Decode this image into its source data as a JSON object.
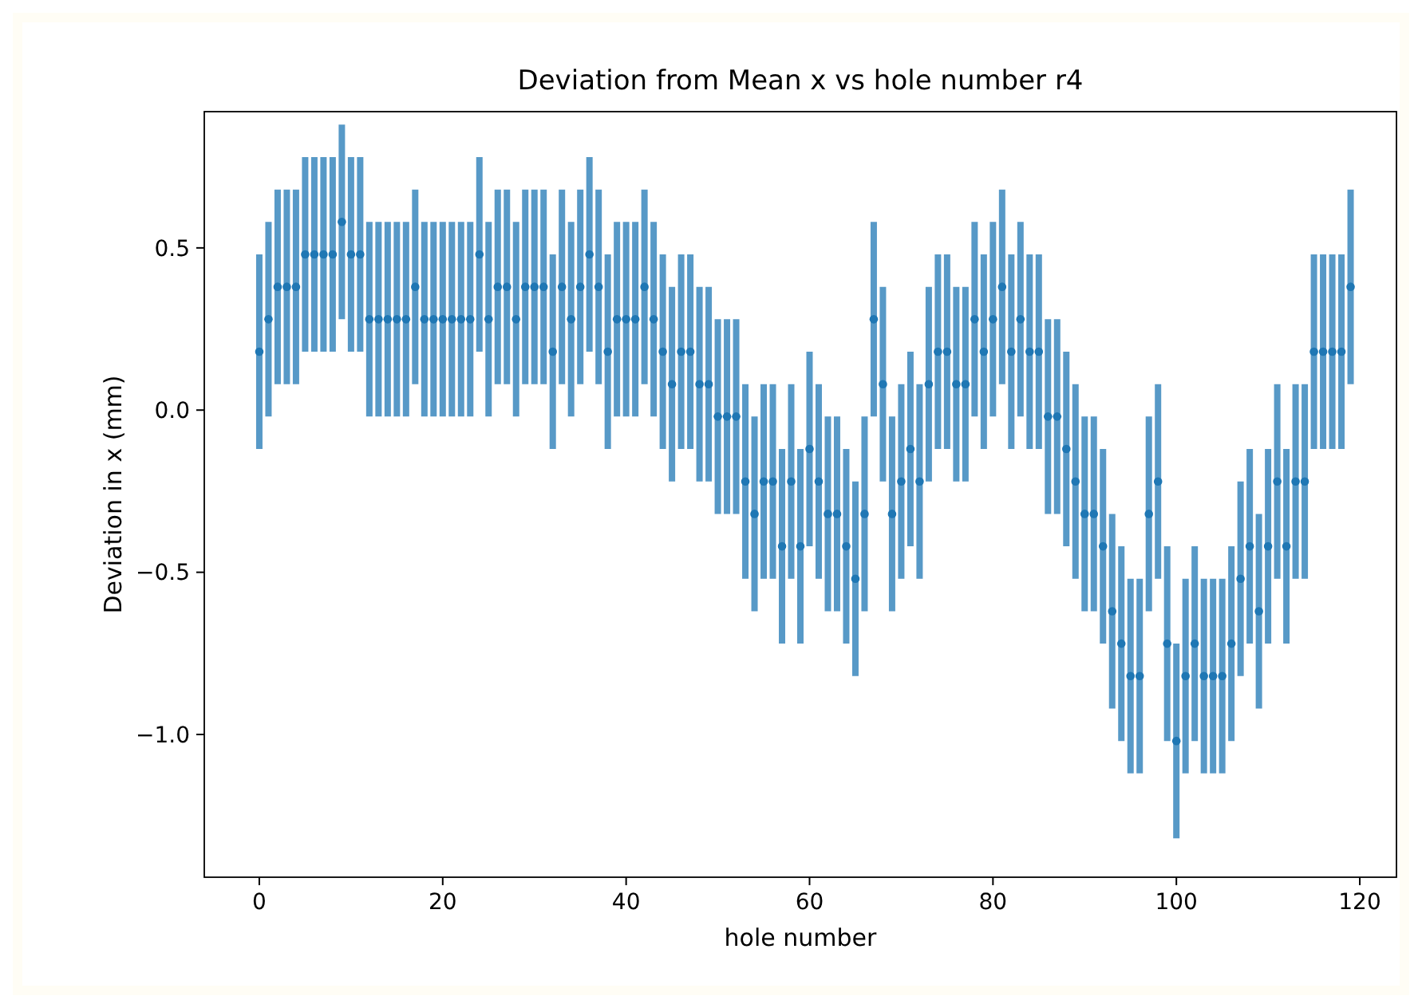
{
  "chart_data": {
    "type": "scatter",
    "title": "Deviation from Mean x vs hole number r4",
    "xlabel": "hole number",
    "ylabel": "Deviation in x (mm)",
    "x": [
      0,
      1,
      2,
      3,
      4,
      5,
      6,
      7,
      8,
      9,
      10,
      11,
      12,
      13,
      14,
      15,
      16,
      17,
      18,
      19,
      20,
      21,
      22,
      23,
      24,
      25,
      26,
      27,
      28,
      29,
      30,
      31,
      32,
      33,
      34,
      35,
      36,
      37,
      38,
      39,
      40,
      41,
      42,
      43,
      44,
      45,
      46,
      47,
      48,
      49,
      50,
      51,
      52,
      53,
      54,
      55,
      56,
      57,
      58,
      59,
      60,
      61,
      62,
      63,
      64,
      65,
      66,
      67,
      68,
      69,
      70,
      71,
      72,
      73,
      74,
      75,
      76,
      77,
      78,
      79,
      80,
      81,
      82,
      83,
      84,
      85,
      86,
      87,
      88,
      89,
      90,
      91,
      92,
      93,
      94,
      95,
      96,
      97,
      98,
      99,
      100,
      101,
      102,
      103,
      104,
      105,
      106,
      107,
      108,
      109,
      110,
      111,
      112,
      113,
      114,
      115,
      116,
      117,
      118,
      119
    ],
    "series": [
      {
        "color": "#1f77b4",
        "values": [
          0.18,
          0.28,
          0.38,
          0.38,
          0.38,
          0.48,
          0.48,
          0.48,
          0.48,
          0.58,
          0.48,
          0.48,
          0.28,
          0.28,
          0.28,
          0.28,
          0.28,
          0.38,
          0.28,
          0.28,
          0.28,
          0.28,
          0.28,
          0.28,
          0.48,
          0.28,
          0.38,
          0.38,
          0.28,
          0.38,
          0.38,
          0.38,
          0.18,
          0.38,
          0.28,
          0.38,
          0.48,
          0.38,
          0.18,
          0.28,
          0.28,
          0.28,
          0.38,
          0.28,
          0.18,
          0.08,
          0.18,
          0.18,
          0.08,
          0.08,
          -0.02,
          -0.02,
          -0.02,
          -0.22,
          -0.32,
          -0.22,
          -0.22,
          -0.42,
          -0.22,
          -0.42,
          -0.12,
          -0.22,
          -0.32,
          -0.32,
          -0.42,
          -0.52,
          -0.32,
          0.28,
          0.08,
          -0.32,
          -0.22,
          -0.12,
          -0.22,
          0.08,
          0.18,
          0.18,
          0.08,
          0.08,
          0.28,
          0.18,
          0.28,
          0.38,
          0.18,
          0.28,
          0.18,
          0.18,
          -0.02,
          -0.02,
          -0.12,
          -0.22,
          -0.32,
          -0.32,
          -0.42,
          -0.62,
          -0.72,
          -0.82,
          -0.82,
          -0.32,
          -0.22,
          -0.72,
          -1.02,
          -0.82,
          -0.72,
          -0.82,
          -0.82,
          -0.82,
          -0.72,
          -0.52,
          -0.42,
          -0.62,
          -0.42,
          -0.22,
          -0.42,
          -0.22,
          -0.22,
          0.18,
          0.18,
          0.18,
          0.18,
          0.38
        ],
        "errors": [
          0.3,
          0.3,
          0.3,
          0.3,
          0.3,
          0.3,
          0.3,
          0.3,
          0.3,
          0.3,
          0.3,
          0.3,
          0.3,
          0.3,
          0.3,
          0.3,
          0.3,
          0.3,
          0.3,
          0.3,
          0.3,
          0.3,
          0.3,
          0.3,
          0.3,
          0.3,
          0.3,
          0.3,
          0.3,
          0.3,
          0.3,
          0.3,
          0.3,
          0.3,
          0.3,
          0.3,
          0.3,
          0.3,
          0.3,
          0.3,
          0.3,
          0.3,
          0.3,
          0.3,
          0.3,
          0.3,
          0.3,
          0.3,
          0.3,
          0.3,
          0.3,
          0.3,
          0.3,
          0.3,
          0.3,
          0.3,
          0.3,
          0.3,
          0.3,
          0.3,
          0.3,
          0.3,
          0.3,
          0.3,
          0.3,
          0.3,
          0.3,
          0.3,
          0.3,
          0.3,
          0.3,
          0.3,
          0.3,
          0.3,
          0.3,
          0.3,
          0.3,
          0.3,
          0.3,
          0.3,
          0.3,
          0.3,
          0.3,
          0.3,
          0.3,
          0.3,
          0.3,
          0.3,
          0.3,
          0.3,
          0.3,
          0.3,
          0.3,
          0.3,
          0.3,
          0.3,
          0.3,
          0.3,
          0.3,
          0.3,
          0.3,
          0.3,
          0.3,
          0.3,
          0.3,
          0.3,
          0.3,
          0.3,
          0.3,
          0.3,
          0.3,
          0.3,
          0.3,
          0.3,
          0.3,
          0.3,
          0.3,
          0.3,
          0.3,
          0.3
        ]
      }
    ],
    "xlim": [
      -6,
      124
    ],
    "xticks": [
      0,
      20,
      40,
      60,
      80,
      100,
      120
    ],
    "ylim": [
      -1.44,
      0.92
    ],
    "yticks": [
      {
        "value": -1.0,
        "label": "−1.0"
      },
      {
        "value": -0.5,
        "label": "−0.5"
      },
      {
        "value": 0,
        "label": "0.0"
      },
      {
        "value": 0.5,
        "label": "0.5"
      }
    ],
    "marker": "circle",
    "grid": false
  }
}
